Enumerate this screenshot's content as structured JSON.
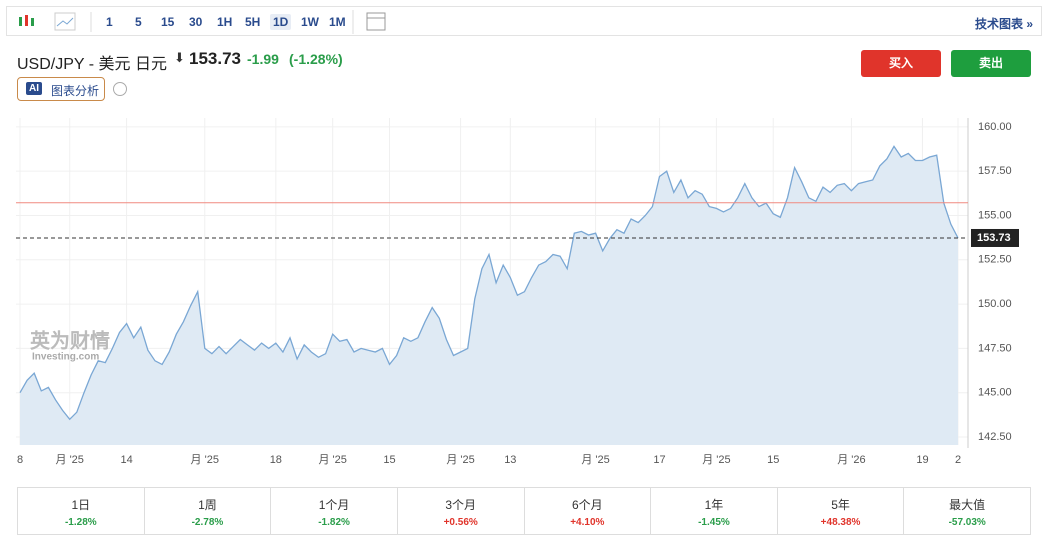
{
  "toolbar": {
    "intervals": [
      "1",
      "5",
      "15",
      "30",
      "1H",
      "5H",
      "1D",
      "1W",
      "1M"
    ],
    "active_interval": "1D",
    "tech_chart": "技术图表 »"
  },
  "header": {
    "symbol": "USD/JPY - 美元 日元",
    "price": "153.73",
    "change": "-1.99",
    "change_pct": "(-1.28%)",
    "ai_badge": "AI",
    "ai_button": "图表分析"
  },
  "buttons": {
    "buy": "买入",
    "sell": "卖出"
  },
  "watermark": {
    "cn": "英为财情",
    "en": "Investing.com"
  },
  "performance": {
    "periods": [
      "1日",
      "1周",
      "1个月",
      "3个月",
      "6个月",
      "1年",
      "5年",
      "最大值"
    ],
    "changes": [
      "-1.28%",
      "-2.78%",
      "-1.82%",
      "+0.56%",
      "+4.10%",
      "-1.45%",
      "+48.38%",
      "-57.03%"
    ]
  },
  "chart_data": {
    "type": "area",
    "color": "#7aa7d4",
    "fill": "#dfeaf4",
    "grid": true,
    "categories": [
      "8",
      null,
      null,
      null,
      null,
      null,
      null,
      "月 '25",
      null,
      null,
      null,
      null,
      null,
      null,
      null,
      "14",
      null,
      null,
      null,
      null,
      null,
      null,
      null,
      null,
      null,
      null,
      "月 '25",
      null,
      null,
      null,
      null,
      null,
      null,
      null,
      null,
      null,
      "18",
      null,
      null,
      null,
      null,
      null,
      null,
      null,
      "月 '25",
      null,
      null,
      null,
      null,
      null,
      null,
      null,
      "15",
      null,
      null,
      null,
      null,
      null,
      null,
      null,
      null,
      null,
      "月 '25",
      null,
      null,
      null,
      null,
      null,
      null,
      "13",
      null,
      null,
      null,
      null,
      null,
      null,
      null,
      null,
      null,
      null,
      null,
      "月 '25",
      null,
      null,
      null,
      null,
      null,
      null,
      null,
      null,
      "17",
      null,
      null,
      null,
      null,
      null,
      null,
      null,
      "月 '25",
      null,
      null,
      null,
      null,
      null,
      null,
      null,
      "15",
      null,
      null,
      null,
      null,
      null,
      null,
      null,
      null,
      null,
      null,
      "月 '26",
      null,
      null,
      null,
      null,
      null,
      null,
      null,
      null,
      null,
      "19",
      null,
      null,
      null,
      null,
      "2"
    ],
    "values": [
      145.0,
      145.7,
      146.1,
      145.1,
      145.3,
      144.6,
      144.0,
      143.5,
      143.9,
      145.0,
      146.0,
      146.8,
      146.7,
      147.5,
      148.4,
      148.9,
      148.1,
      148.7,
      147.4,
      146.8,
      146.6,
      147.3,
      148.3,
      149.0,
      149.9,
      150.7,
      147.5,
      147.2,
      147.6,
      147.2,
      147.6,
      148.0,
      147.7,
      147.4,
      147.8,
      147.5,
      147.8,
      147.3,
      148.1,
      146.9,
      147.7,
      147.3,
      147.0,
      147.2,
      148.3,
      147.9,
      148.0,
      147.3,
      147.5,
      147.4,
      147.3,
      147.5,
      146.6,
      147.1,
      148.1,
      147.9,
      148.1,
      149.0,
      149.8,
      149.2,
      148.0,
      147.1,
      147.3,
      147.5,
      150.3,
      152.0,
      152.8,
      151.2,
      152.2,
      151.5,
      150.5,
      150.7,
      151.5,
      152.2,
      152.4,
      152.8,
      152.7,
      152.0,
      154.0,
      154.1,
      153.9,
      154.0,
      153.0,
      153.7,
      154.2,
      154.0,
      154.8,
      154.6,
      155.0,
      155.5,
      157.2,
      157.5,
      156.3,
      157.0,
      156.0,
      156.4,
      156.2,
      155.5,
      155.4,
      155.2,
      155.4,
      156.0,
      156.8,
      156.0,
      155.5,
      155.7,
      155.1,
      154.9,
      156.0,
      157.7,
      156.9,
      156.0,
      155.8,
      156.6,
      156.3,
      156.7,
      156.8,
      156.4,
      156.8,
      156.9,
      157.0,
      157.8,
      158.2,
      158.9,
      158.3,
      158.5,
      158.1,
      158.1,
      158.3,
      158.4,
      155.7,
      154.5,
      153.73
    ],
    "ylim": [
      142.05,
      160.5
    ],
    "yticks": [
      {
        "value": 142.5,
        "label": "142.50"
      },
      {
        "value": 145,
        "label": "145.00"
      },
      {
        "value": 147.5,
        "label": "147.50"
      },
      {
        "value": 150,
        "label": "150.00"
      },
      {
        "value": 152.5,
        "label": "152.50"
      },
      {
        "value": 155,
        "label": "155.00"
      },
      {
        "value": 157.5,
        "label": "157.50"
      },
      {
        "value": 160,
        "label": "160.00"
      }
    ],
    "reference_line": {
      "value": 155.72,
      "color": "#f08a80"
    },
    "last_price": {
      "value": 153.73,
      "label": "153.73"
    }
  }
}
